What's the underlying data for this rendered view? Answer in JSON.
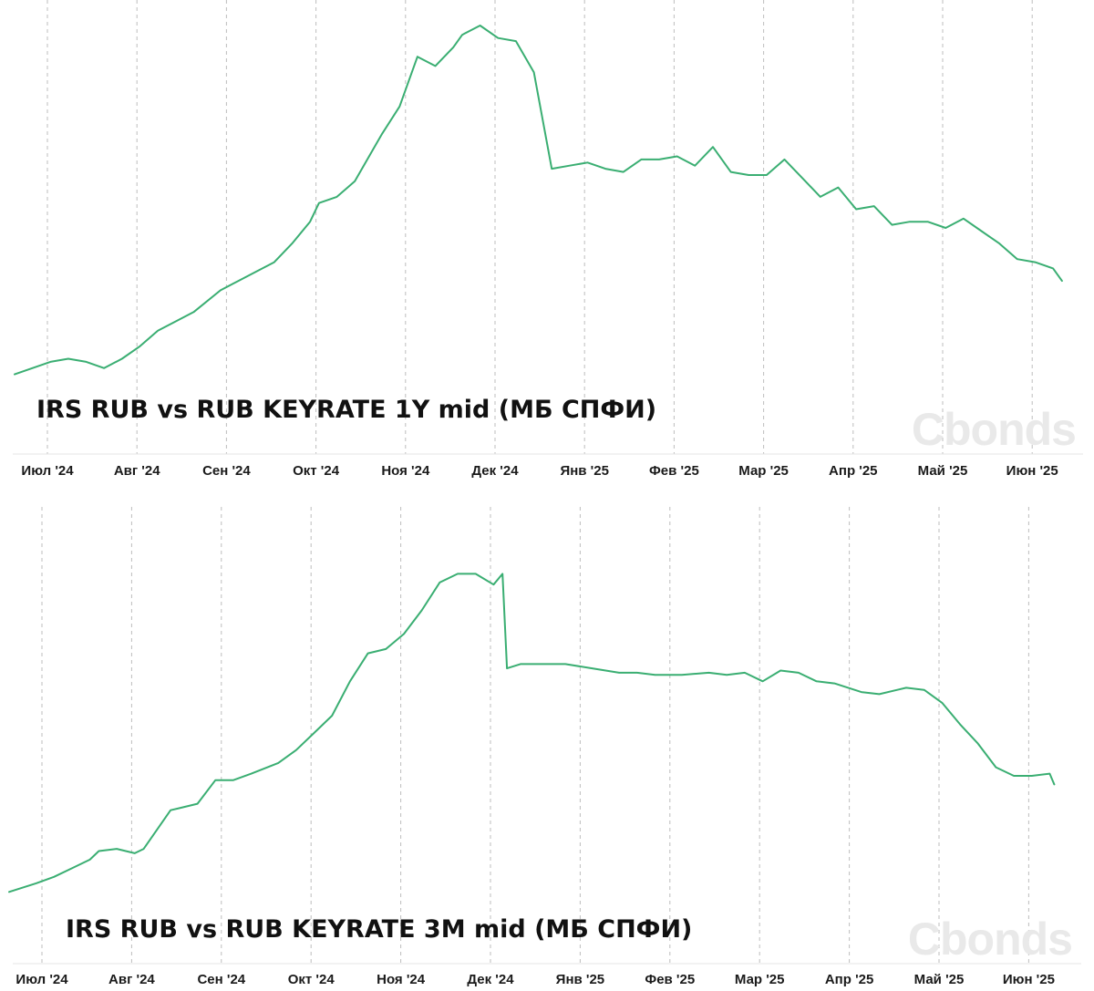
{
  "watermark": "Cbonds",
  "colors": {
    "line": "#3aae72",
    "grid": "#bdbdbd",
    "axis": "#e4e4e4",
    "text": "#1a1a1a"
  },
  "chart_data": [
    {
      "type": "line",
      "title": "IRS RUB vs RUB KEYRATE 1Y mid (МБ СПФИ)",
      "x_ticks": [
        "Июл '24",
        "Авг '24",
        "Сен '24",
        "Окт '24",
        "Ноя '24",
        "Дек '24",
        "Янв '25",
        "Фев '25",
        "Мар '25",
        "Апр '25",
        "Май '25",
        "Июн '25"
      ],
      "x": [
        0,
        0.4,
        0.6,
        0.8,
        1,
        1.2,
        1.4,
        1.6,
        1.8,
        2,
        2.3,
        2.5,
        2.7,
        2.9,
        3.1,
        3.3,
        3.4,
        3.6,
        3.8,
        4,
        4.1,
        4.3,
        4.5,
        4.7,
        4.9,
        5,
        5.2,
        5.4,
        5.6,
        5.8,
        6,
        6.2,
        6.4,
        6.6,
        6.8,
        7,
        7.2,
        7.4,
        7.6,
        7.8,
        8,
        8.2,
        8.4,
        8.6,
        8.8,
        9,
        9.2,
        9.4,
        9.6,
        9.8,
        10,
        10.2,
        10.4,
        10.6,
        10.8,
        11,
        11.2,
        11.4,
        11.6,
        11.7
      ],
      "y": [
        13,
        17,
        18,
        17,
        15,
        18,
        22,
        27,
        30,
        33,
        40,
        43,
        46,
        49,
        55,
        62,
        68,
        70,
        75,
        85,
        90,
        99,
        115,
        112,
        118,
        122,
        125,
        121,
        120,
        110,
        79,
        80,
        81,
        79,
        78,
        82,
        82,
        83,
        80,
        86,
        78,
        77,
        77,
        82,
        76,
        70,
        73,
        66,
        67,
        61,
        62,
        62,
        60,
        63,
        59,
        55,
        50,
        49,
        47,
        43
      ],
      "ylim": [
        0,
        125
      ]
    },
    {
      "type": "line",
      "title": "IRS RUB vs RUB KEYRATE 3M mid (МБ СПФИ)",
      "x_ticks": [
        "Июл '24",
        "Авг '24",
        "Сен '24",
        "Окт '24",
        "Ноя '24",
        "Дек '24",
        "Янв '25",
        "Фев '25",
        "Мар '25",
        "Апр '25",
        "Май '25",
        "Июн '25"
      ],
      "x": [
        0,
        0.3,
        0.5,
        0.7,
        0.9,
        1,
        1.2,
        1.4,
        1.5,
        1.8,
        1.9,
        2.1,
        2.3,
        2.5,
        2.7,
        3,
        3.2,
        3.4,
        3.6,
        3.8,
        4,
        4.2,
        4.4,
        4.6,
        4.8,
        5,
        5.2,
        5.4,
        5.5,
        5.55,
        5.7,
        5.9,
        6.2,
        6.5,
        6.8,
        7,
        7.2,
        7.5,
        7.8,
        8,
        8.2,
        8.4,
        8.6,
        8.8,
        9,
        9.2,
        9.5,
        9.7,
        9.9,
        10,
        10.2,
        10.4,
        10.6,
        10.8,
        11,
        11.2,
        11.4,
        11.6,
        11.65
      ],
      "y": [
        2,
        6,
        9,
        13,
        17,
        21,
        22,
        20,
        22,
        40,
        41,
        43,
        54,
        54,
        57,
        62,
        68,
        76,
        84,
        100,
        113,
        115,
        122,
        133,
        146,
        150,
        150,
        145,
        150,
        106,
        108,
        108,
        108,
        106,
        104,
        104,
        103,
        103,
        104,
        103,
        104,
        100,
        105,
        104,
        100,
        99,
        95,
        94,
        96,
        97,
        96,
        90,
        80,
        71,
        60,
        56,
        56,
        57,
        52
      ],
      "ylim": [
        0,
        154
      ]
    }
  ]
}
